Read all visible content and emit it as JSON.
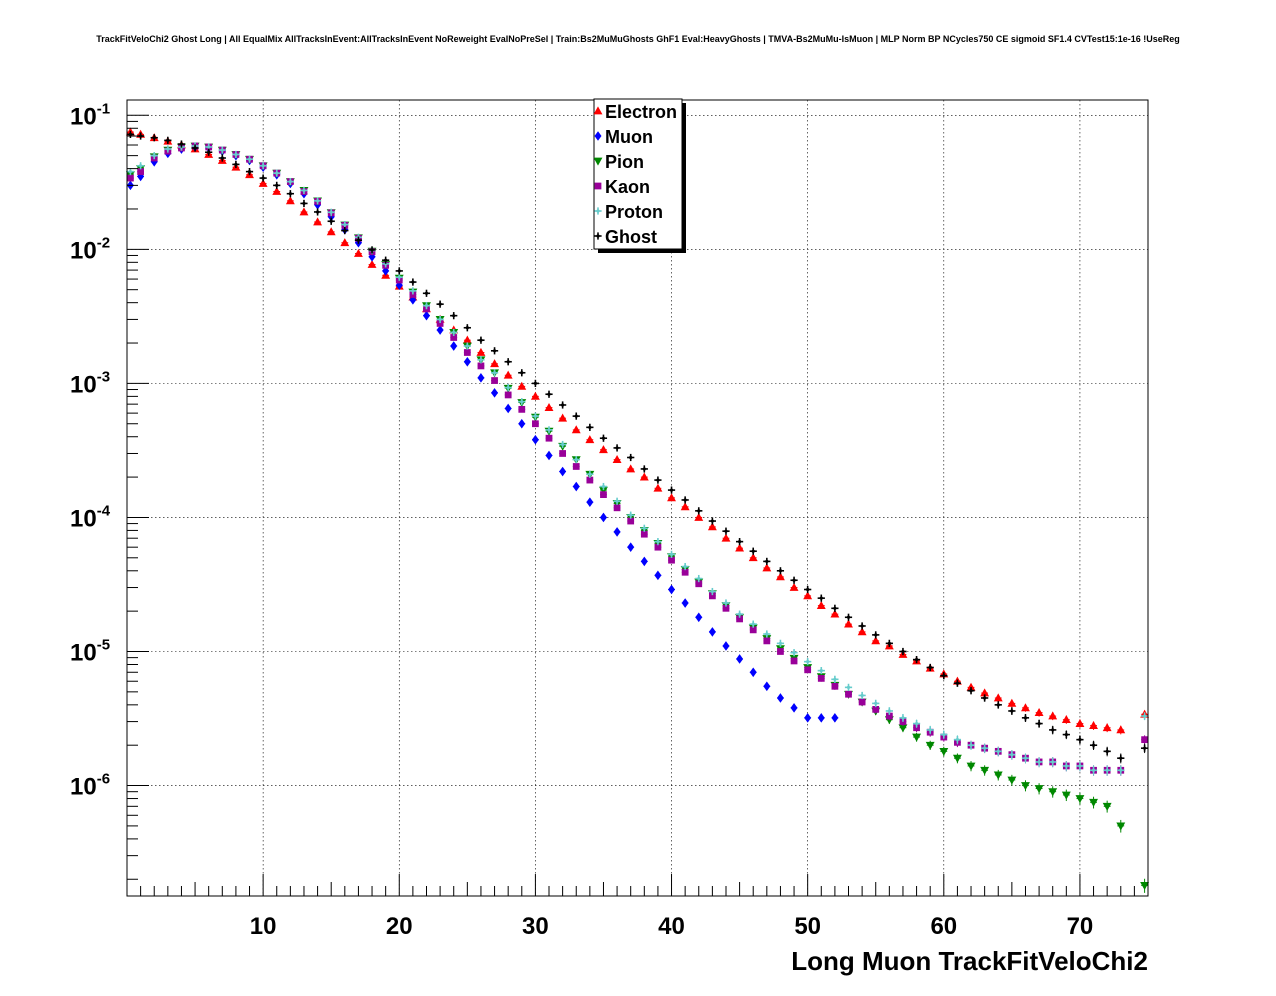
{
  "chart_data": {
    "type": "scatter",
    "title": "TrackFitVeloChi2 Ghost Long | All EqualMix AllTracksInEvent:AllTracksInEvent NoReweight EvalNoPreSel | Train:Bs2MuMuGhosts GhF1 Eval:HeavyGhosts | TMVA-Bs2MuMu-IsMuon | MLP Norm BP NCycles750 CE sigmoid SF1.4 CVTest15:1e-16 !UseReg",
    "xlabel": "Long Muon TrackFitVeloChi2",
    "ylabel": "",
    "xlim": [
      0,
      75
    ],
    "ylim": [
      1.5e-07,
      0.13
    ],
    "yscale": "log",
    "grid": true,
    "legend_position": "top-center",
    "x_ticks": [
      10,
      20,
      30,
      40,
      50,
      60,
      70
    ],
    "x_tick_labels": [
      "10",
      "20",
      "30",
      "40",
      "50",
      "60",
      "70"
    ],
    "y_ticks": [
      {
        "value": 0.1,
        "base": "10",
        "exp": "-1"
      },
      {
        "value": 0.01,
        "base": "10",
        "exp": "-2"
      },
      {
        "value": 0.001,
        "base": "10",
        "exp": "-3"
      },
      {
        "value": 0.0001,
        "base": "10",
        "exp": "-4"
      },
      {
        "value": 1e-05,
        "base": "10",
        "exp": "-5"
      },
      {
        "value": 1e-06,
        "base": "10",
        "exp": "-6"
      }
    ],
    "series": [
      {
        "name": "Electron",
        "color": "#ff0000",
        "marker": "triangle-up",
        "x": [
          0.25,
          1,
          2,
          3,
          4,
          5,
          6,
          7,
          8,
          9,
          10,
          11,
          12,
          13,
          14,
          15,
          16,
          17,
          18,
          19,
          20,
          21,
          22,
          23,
          24,
          25,
          26,
          27,
          28,
          29,
          30,
          31,
          32,
          33,
          34,
          35,
          36,
          37,
          38,
          39,
          40,
          41,
          42,
          43,
          44,
          45,
          46,
          47,
          48,
          49,
          50,
          51,
          52,
          53,
          54,
          55,
          56,
          57,
          58,
          59,
          60,
          61,
          62,
          63,
          64,
          65,
          66,
          67,
          68,
          69,
          70,
          71,
          72,
          73,
          74.75
        ],
        "y": [
          0.075,
          0.072,
          0.068,
          0.064,
          0.06,
          0.056,
          0.051,
          0.046,
          0.041,
          0.036,
          0.031,
          0.027,
          0.023,
          0.019,
          0.016,
          0.0135,
          0.0112,
          0.0093,
          0.0077,
          0.0064,
          0.0053,
          0.0044,
          0.0036,
          0.003,
          0.0025,
          0.0021,
          0.0017,
          0.0014,
          0.00115,
          0.00095,
          0.0008,
          0.00066,
          0.00055,
          0.00045,
          0.00038,
          0.00032,
          0.00027,
          0.00023,
          0.0002,
          0.000165,
          0.00014,
          0.00012,
          0.0001,
          8.5e-05,
          7e-05,
          5.9e-05,
          5e-05,
          4.2e-05,
          3.6e-05,
          3e-05,
          2.6e-05,
          2.2e-05,
          1.9e-05,
          1.6e-05,
          1.4e-05,
          1.2e-05,
          1.1e-05,
          9.5e-06,
          8.5e-06,
          7.5e-06,
          6.8e-06,
          6e-06,
          5.4e-06,
          4.9e-06,
          4.5e-06,
          4.1e-06,
          3.8e-06,
          3.5e-06,
          3.3e-06,
          3.1e-06,
          2.9e-06,
          2.8e-06,
          2.7e-06,
          2.6e-06,
          3.4e-06
        ]
      },
      {
        "name": "Muon",
        "color": "#0000ff",
        "marker": "diamond",
        "x": [
          0.25,
          1,
          2,
          3,
          4,
          5,
          6,
          7,
          8,
          9,
          10,
          11,
          12,
          13,
          14,
          15,
          16,
          17,
          18,
          19,
          20,
          21,
          22,
          23,
          24,
          25,
          26,
          27,
          28,
          29,
          30,
          31,
          32,
          33,
          34,
          35,
          36,
          37,
          38,
          39,
          40,
          41,
          42,
          43,
          44,
          45,
          46,
          47,
          48,
          49,
          50,
          51,
          52
        ],
        "y": [
          0.03,
          0.035,
          0.045,
          0.052,
          0.056,
          0.058,
          0.057,
          0.054,
          0.05,
          0.046,
          0.041,
          0.036,
          0.031,
          0.026,
          0.0215,
          0.0175,
          0.014,
          0.0112,
          0.0088,
          0.0069,
          0.0054,
          0.0042,
          0.0032,
          0.0025,
          0.0019,
          0.00145,
          0.0011,
          0.00085,
          0.00065,
          0.0005,
          0.00038,
          0.00029,
          0.00022,
          0.00017,
          0.00013,
          0.0001,
          7.8e-05,
          6e-05,
          4.7e-05,
          3.7e-05,
          2.9e-05,
          2.3e-05,
          1.8e-05,
          1.4e-05,
          1.1e-05,
          8.8e-06,
          7e-06,
          5.5e-06,
          4.5e-06,
          3.8e-06,
          3.2e-06,
          3.2e-06,
          3.2e-06
        ]
      },
      {
        "name": "Pion",
        "color": "#008800",
        "marker": "triangle-down",
        "x": [
          0.25,
          1,
          2,
          3,
          4,
          5,
          6,
          7,
          8,
          9,
          10,
          11,
          12,
          13,
          14,
          15,
          16,
          17,
          18,
          19,
          20,
          21,
          22,
          23,
          24,
          25,
          26,
          27,
          28,
          29,
          30,
          31,
          32,
          33,
          34,
          35,
          36,
          37,
          38,
          39,
          40,
          41,
          42,
          43,
          44,
          45,
          46,
          47,
          48,
          49,
          50,
          51,
          52,
          53,
          54,
          55,
          56,
          57,
          58,
          59,
          60,
          61,
          62,
          63,
          64,
          65,
          66,
          67,
          68,
          69,
          70,
          71,
          72,
          73,
          74.75
        ],
        "y": [
          0.036,
          0.04,
          0.049,
          0.055,
          0.058,
          0.059,
          0.058,
          0.055,
          0.051,
          0.047,
          0.042,
          0.037,
          0.032,
          0.0275,
          0.023,
          0.0188,
          0.0152,
          0.0122,
          0.0097,
          0.0077,
          0.0061,
          0.0048,
          0.0038,
          0.003,
          0.0024,
          0.0019,
          0.0015,
          0.0012,
          0.00092,
          0.00072,
          0.00056,
          0.00044,
          0.00034,
          0.00027,
          0.00021,
          0.00016,
          0.000127,
          0.0001,
          8e-05,
          6.4e-05,
          5.1e-05,
          4.1e-05,
          3.3e-05,
          2.7e-05,
          2.2e-05,
          1.8e-05,
          1.5e-05,
          1.25e-05,
          1.05e-05,
          8.9e-06,
          7.6e-06,
          6.5e-06,
          5.6e-06,
          4.8e-06,
          4.2e-06,
          3.6e-06,
          3.1e-06,
          2.7e-06,
          2.3e-06,
          2e-06,
          1.8e-06,
          1.6e-06,
          1.4e-06,
          1.3e-06,
          1.2e-06,
          1.1e-06,
          1e-06,
          9.5e-07,
          9e-07,
          8.5e-07,
          8e-07,
          7.5e-07,
          7e-07,
          5e-07,
          1.8e-07
        ]
      },
      {
        "name": "Kaon",
        "color": "#990099",
        "marker": "square",
        "x": [
          0.25,
          1,
          2,
          3,
          4,
          5,
          6,
          7,
          8,
          9,
          10,
          11,
          12,
          13,
          14,
          15,
          16,
          17,
          18,
          19,
          20,
          21,
          22,
          23,
          24,
          25,
          26,
          27,
          28,
          29,
          30,
          31,
          32,
          33,
          34,
          35,
          36,
          37,
          38,
          39,
          40,
          41,
          42,
          43,
          44,
          45,
          46,
          47,
          48,
          49,
          50,
          51,
          52,
          53,
          54,
          55,
          56,
          57,
          58,
          59,
          60,
          61,
          62,
          63,
          64,
          65,
          66,
          67,
          68,
          69,
          70,
          71,
          72,
          73,
          74.75
        ],
        "y": [
          0.034,
          0.038,
          0.048,
          0.054,
          0.057,
          0.059,
          0.058,
          0.055,
          0.051,
          0.047,
          0.042,
          0.037,
          0.032,
          0.027,
          0.0228,
          0.0187,
          0.0151,
          0.0121,
          0.0096,
          0.0076,
          0.0059,
          0.0046,
          0.0036,
          0.0028,
          0.0022,
          0.0017,
          0.00135,
          0.00105,
          0.00082,
          0.00064,
          0.0005,
          0.00039,
          0.0003,
          0.00024,
          0.00019,
          0.000148,
          0.000118,
          9.4e-05,
          7.5e-05,
          6e-05,
          4.8e-05,
          3.9e-05,
          3.2e-05,
          2.6e-05,
          2.1e-05,
          1.75e-05,
          1.45e-05,
          1.2e-05,
          1e-05,
          8.5e-06,
          7.3e-06,
          6.3e-06,
          5.5e-06,
          4.8e-06,
          4.2e-06,
          3.7e-06,
          3.3e-06,
          3e-06,
          2.7e-06,
          2.5e-06,
          2.3e-06,
          2.1e-06,
          2e-06,
          1.9e-06,
          1.8e-06,
          1.7e-06,
          1.6e-06,
          1.5e-06,
          1.5e-06,
          1.4e-06,
          1.4e-06,
          1.3e-06,
          1.3e-06,
          1.3e-06,
          2.2e-06
        ]
      },
      {
        "name": "Proton",
        "color": "#66cccc",
        "marker": "cross",
        "x": [
          0.25,
          1,
          2,
          3,
          4,
          5,
          6,
          7,
          8,
          9,
          10,
          11,
          12,
          13,
          14,
          15,
          16,
          17,
          18,
          19,
          20,
          21,
          22,
          23,
          24,
          25,
          26,
          27,
          28,
          29,
          30,
          31,
          32,
          33,
          34,
          35,
          36,
          37,
          38,
          39,
          40,
          41,
          42,
          43,
          44,
          45,
          46,
          47,
          48,
          49,
          50,
          51,
          52,
          53,
          54,
          55,
          56,
          57,
          58,
          59,
          60,
          61,
          62,
          63,
          64,
          65,
          66,
          67,
          68,
          69,
          70,
          71,
          72,
          73,
          74.75
        ],
        "y": [
          0.038,
          0.042,
          0.05,
          0.056,
          0.058,
          0.059,
          0.058,
          0.055,
          0.051,
          0.047,
          0.042,
          0.037,
          0.032,
          0.0275,
          0.023,
          0.0189,
          0.0153,
          0.0123,
          0.0098,
          0.0078,
          0.0062,
          0.0049,
          0.0038,
          0.003,
          0.0024,
          0.0019,
          0.0015,
          0.0012,
          0.00093,
          0.00073,
          0.00057,
          0.00045,
          0.00035,
          0.00027,
          0.00021,
          0.00017,
          0.000132,
          0.000104,
          8.3e-05,
          6.6e-05,
          5.3e-05,
          4.3e-05,
          3.5e-05,
          2.8e-05,
          2.3e-05,
          1.9e-05,
          1.6e-05,
          1.35e-05,
          1.15e-05,
          9.8e-06,
          8.4e-06,
          7.2e-06,
          6.2e-06,
          5.4e-06,
          4.7e-06,
          4.1e-06,
          3.6e-06,
          3.2e-06,
          2.9e-06,
          2.6e-06,
          2.4e-06,
          2.2e-06,
          2e-06,
          1.9e-06,
          1.8e-06,
          1.7e-06,
          1.6e-06,
          1.5e-06,
          1.5e-06,
          1.4e-06,
          1.4e-06,
          1.3e-06,
          1.3e-06,
          1.3e-06,
          3.3e-06
        ]
      },
      {
        "name": "Ghost",
        "color": "#000000",
        "marker": "cross",
        "x": [
          0.25,
          1,
          2,
          3,
          4,
          5,
          6,
          7,
          8,
          9,
          10,
          11,
          12,
          13,
          14,
          15,
          16,
          17,
          18,
          19,
          20,
          21,
          22,
          23,
          24,
          25,
          26,
          27,
          28,
          29,
          30,
          31,
          32,
          33,
          34,
          35,
          36,
          37,
          38,
          39,
          40,
          41,
          42,
          43,
          44,
          45,
          46,
          47,
          48,
          49,
          50,
          51,
          52,
          53,
          54,
          55,
          56,
          57,
          58,
          59,
          60,
          61,
          62,
          63,
          64,
          65,
          66,
          67,
          68,
          69,
          70,
          71,
          72,
          73,
          74.75
        ],
        "y": [
          0.072,
          0.07,
          0.068,
          0.065,
          0.061,
          0.057,
          0.053,
          0.048,
          0.043,
          0.038,
          0.034,
          0.03,
          0.026,
          0.022,
          0.019,
          0.0162,
          0.0138,
          0.0117,
          0.0099,
          0.0083,
          0.0069,
          0.0057,
          0.0047,
          0.0039,
          0.0032,
          0.0026,
          0.0021,
          0.00175,
          0.00145,
          0.0012,
          0.001,
          0.00083,
          0.00069,
          0.00057,
          0.00047,
          0.00039,
          0.00033,
          0.00028,
          0.00023,
          0.00019,
          0.00016,
          0.000135,
          0.000112,
          9.4e-05,
          7.9e-05,
          6.6e-05,
          5.6e-05,
          4.7e-05,
          4e-05,
          3.4e-05,
          2.9e-05,
          2.5e-05,
          2.1e-05,
          1.8e-05,
          1.55e-05,
          1.33e-05,
          1.15e-05,
          1e-05,
          8.7e-06,
          7.6e-06,
          6.6e-06,
          5.8e-06,
          5.1e-06,
          4.5e-06,
          4e-06,
          3.6e-06,
          3.2e-06,
          2.9e-06,
          2.6e-06,
          2.4e-06,
          2.2e-06,
          2e-06,
          1.8e-06,
          1.6e-06,
          1.9e-06
        ]
      }
    ]
  }
}
